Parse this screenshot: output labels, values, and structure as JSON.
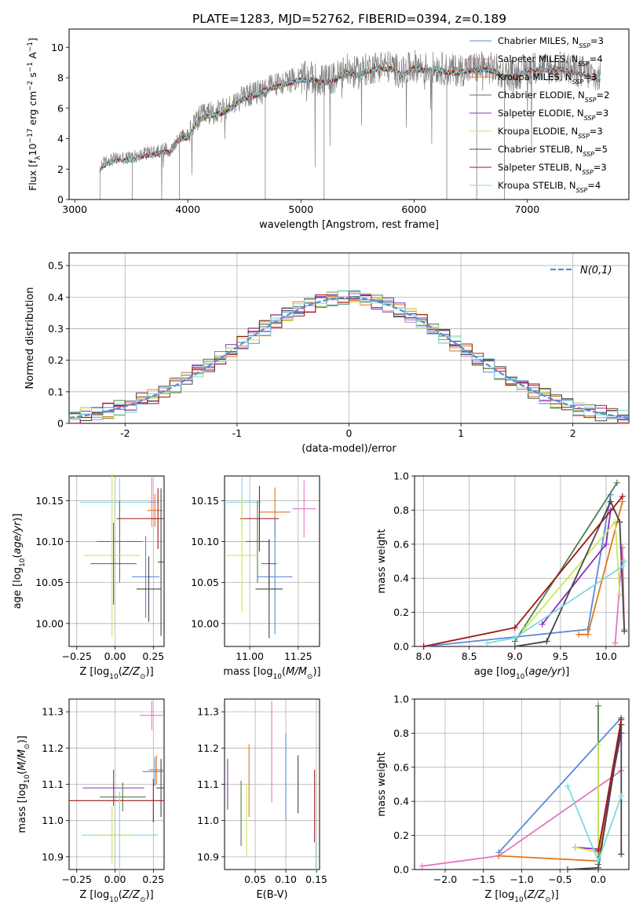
{
  "figure_title": "PLATE=1283, MJD=52762, FIBERID=0394, z=0.189",
  "colors": {
    "chabrier_miles": "#5a8bd8",
    "salpeter_miles": "#e377c2",
    "kroupa_miles": "#e0781e",
    "chabrier_elodie": "#4f7f4f",
    "salpeter_elodie": "#8a2fb8",
    "kroupa_elodie": "#c9e85a",
    "chabrier_stelib": "#454545",
    "salpeter_stelib": "#a11515",
    "kroupa_stelib": "#7fd9e0",
    "data": "#808080",
    "gaussian": "#5b8bd6",
    "grid": "#b0b0b0"
  },
  "chart_data": [
    {
      "type": "line",
      "id": "spectrum",
      "xlabel": "wavelength [Angstrom, rest frame]",
      "ylabel": "Flux [f$_\\lambda$10$^{-17}$ erg cm$^{-2}$ s$^{-1}$ A$^{-1}$]",
      "xlim": [
        2950,
        7900
      ],
      "ylim": [
        0,
        11.2
      ],
      "xticks": [
        3000,
        4000,
        5000,
        6000,
        7000
      ],
      "yticks": [
        0,
        2,
        4,
        6,
        8,
        10
      ],
      "grid": false,
      "legend_position": "top-right",
      "legend": [
        {
          "label": "Chabrier MILES, N_SSP=3",
          "color_key": "chabrier_miles"
        },
        {
          "label": "Salpeter MILES, N_SSP=4",
          "color_key": "salpeter_miles"
        },
        {
          "label": "Kroupa MILES, N_SSP=3",
          "color_key": "kroupa_miles"
        },
        {
          "label": "Chabrier ELODIE, N_SSP=2",
          "color_key": "chabrier_elodie"
        },
        {
          "label": "Salpeter ELODIE, N_SSP=3",
          "color_key": "salpeter_elodie"
        },
        {
          "label": "Kroupa ELODIE, N_SSP=3",
          "color_key": "kroupa_elodie"
        },
        {
          "label": "Chabrier STELIB, N_SSP=5",
          "color_key": "chabrier_stelib"
        },
        {
          "label": "Salpeter STELIB, N_SSP=3",
          "color_key": "salpeter_stelib"
        },
        {
          "label": "Kroupa STELIB, N_SSP=4",
          "color_key": "kroupa_stelib"
        }
      ],
      "data_x_range": [
        3220,
        7650
      ],
      "continuum": {
        "x": [
          3220,
          3240,
          3300,
          3400,
          3500,
          3600,
          3700,
          3800,
          3850,
          3900,
          3950,
          4000,
          4100,
          4200,
          4300,
          4400,
          4500,
          4600,
          4700,
          4800,
          4900,
          5000,
          5100,
          5200,
          5300,
          5400,
          5500,
          5600,
          5700,
          5800,
          5900,
          6000,
          6100,
          6200,
          6300,
          6400,
          6500,
          6600,
          6700,
          6800,
          6900,
          7000,
          7100,
          7200,
          7300,
          7400,
          7500,
          7650
        ],
        "y": [
          2.0,
          2.3,
          2.6,
          2.7,
          2.75,
          3.0,
          3.1,
          3.3,
          3.2,
          3.9,
          4.2,
          4.2,
          5.4,
          5.7,
          5.8,
          6.3,
          6.8,
          7.0,
          7.4,
          7.6,
          7.8,
          8.0,
          8.0,
          7.8,
          8.0,
          8.5,
          8.3,
          8.6,
          8.8,
          8.7,
          8.3,
          8.8,
          8.6,
          8.7,
          8.5,
          8.5,
          8.6,
          8.7,
          8.6,
          8.2,
          8.2,
          8.6,
          8.7,
          8.6,
          8.7,
          8.5,
          8.4,
          7.9
        ]
      }
    },
    {
      "type": "histogram",
      "id": "residuals",
      "xlabel": "(data-model)/error",
      "ylabel": "Normed distribution",
      "xlim": [
        -2.5,
        2.5
      ],
      "ylim": [
        0,
        0.54
      ],
      "xticks": [
        -2,
        -1,
        0,
        1,
        2
      ],
      "yticks": [
        0.0,
        0.1,
        0.2,
        0.3,
        0.4,
        0.5
      ],
      "grid": true,
      "legend_position": "top-right",
      "legend": [
        {
          "label": "N(0,1)",
          "color_key": "gaussian"
        }
      ],
      "bin_width": 0.1
    },
    {
      "type": "scatter",
      "id": "age_vs_Z",
      "xlabel": "Z [log10(Z/Z⊙)]",
      "ylabel": "age [log10(age/yr)]",
      "xlim": [
        -0.3,
        0.32
      ],
      "ylim": [
        9.972,
        10.18
      ],
      "xticks": [
        -0.25,
        0.0,
        0.25
      ],
      "xtick_labels": [
        "−0.25",
        "0.00",
        "0.25"
      ],
      "yticks": [
        10.0,
        10.05,
        10.1,
        10.15
      ],
      "ytick_labels": [
        "10.00",
        "10.05",
        "10.10",
        "10.15"
      ],
      "grid": true,
      "points": [
        {
          "color_key": "kroupa_stelib",
          "x": 0.03,
          "y": 10.148,
          "xerr": 0.26,
          "yerr": 0.03
        },
        {
          "color_key": "salpeter_miles",
          "x": 0.24,
          "y": 10.148,
          "xerr": 0.02,
          "yerr": 0.03
        },
        {
          "color_key": "kroupa_miles",
          "x": 0.26,
          "y": 10.138,
          "xerr": 0.05,
          "yerr": 0.02
        },
        {
          "color_key": "salpeter_stelib",
          "x": 0.28,
          "y": 10.128,
          "xerr": 0.27,
          "yerr": 0.037
        },
        {
          "color_key": "chabrier_stelib",
          "x": 0.3,
          "y": 10.075,
          "xerr": 0.02,
          "yerr": 0.09
        },
        {
          "color_key": "chabrier_elodie",
          "x": 0.03,
          "y": 10.1,
          "xerr": 0.15,
          "yerr": 0.05
        },
        {
          "color_key": "kroupa_elodie",
          "x": -0.02,
          "y": 10.083,
          "xerr": 0.18,
          "yerr": 0.1
        },
        {
          "color_key": "salpeter_elodie",
          "x": -0.01,
          "y": 10.073,
          "xerr": 0.15,
          "yerr": 0.05
        },
        {
          "color_key": "chabrier_miles",
          "x": 0.2,
          "y": 10.057,
          "xerr": 0.09,
          "yerr": 0.05
        },
        {
          "color_key": "chabrier_stelib",
          "x": 0.22,
          "y": 10.042,
          "xerr": 0.08,
          "yerr": 0.04
        }
      ]
    },
    {
      "type": "scatter",
      "id": "age_vs_mass",
      "xlabel": "mass [log10(M/M⊙)]",
      "ylabel": "",
      "xlim": [
        10.87,
        11.36
      ],
      "ylim": [
        9.972,
        10.18
      ],
      "xticks": [
        11.0,
        11.25
      ],
      "xtick_labels": [
        "11.00",
        "11.25"
      ],
      "yticks": [
        10.0,
        10.05,
        10.1,
        10.15
      ],
      "ytick_labels": [
        "10.00",
        "10.05",
        "10.10",
        "10.15"
      ],
      "grid": true,
      "points": [
        {
          "color_key": "kroupa_stelib",
          "x": 10.96,
          "y": 10.148,
          "xerr": 0.1,
          "yerr": 0.03
        },
        {
          "color_key": "salpeter_miles",
          "x": 11.28,
          "y": 10.14,
          "xerr": 0.06,
          "yerr": 0.035
        },
        {
          "color_key": "kroupa_miles",
          "x": 11.13,
          "y": 10.136,
          "xerr": 0.08,
          "yerr": 0.03
        },
        {
          "color_key": "salpeter_stelib",
          "x": 11.05,
          "y": 10.128,
          "xerr": 0.1,
          "yerr": 0.04
        },
        {
          "color_key": "chabrier_elodie",
          "x": 11.04,
          "y": 10.1,
          "xerr": 0.06,
          "yerr": 0.05
        },
        {
          "color_key": "kroupa_elodie",
          "x": 10.96,
          "y": 10.083,
          "xerr": 0.08,
          "yerr": 0.07
        },
        {
          "color_key": "salpeter_elodie",
          "x": 11.1,
          "y": 10.073,
          "xerr": 0.04,
          "yerr": 0.03
        },
        {
          "color_key": "chabrier_miles",
          "x": 11.13,
          "y": 10.057,
          "xerr": 0.09,
          "yerr": 0.07
        },
        {
          "color_key": "chabrier_stelib",
          "x": 11.1,
          "y": 10.042,
          "xerr": 0.07,
          "yerr": 0.06
        }
      ]
    },
    {
      "type": "line",
      "id": "weight_vs_age",
      "xlabel": "age [log10(age/yr)]",
      "ylabel": "mass weight",
      "xlim": [
        7.9,
        10.25
      ],
      "ylim": [
        0,
        1.0
      ],
      "xticks": [
        8.0,
        8.5,
        9.0,
        9.5,
        10.0
      ],
      "xtick_labels": [
        "8.0",
        "8.5",
        "9.0",
        "9.5",
        "10.0"
      ],
      "yticks": [
        0.0,
        0.2,
        0.4,
        0.6,
        0.8,
        1.0
      ],
      "ytick_labels": [
        "0.0",
        "0.2",
        "0.4",
        "0.6",
        "0.8",
        "1.0"
      ],
      "grid": true,
      "series": [
        {
          "color_key": "chabrier_miles",
          "x": [
            8.0,
            9.8,
            10.05
          ],
          "y": [
            0.0,
            0.1,
            0.89
          ]
        },
        {
          "color_key": "salpeter_miles",
          "x": [
            10.1,
            10.18,
            10.2
          ],
          "y": [
            0.02,
            0.58,
            0.1
          ]
        },
        {
          "color_key": "kroupa_miles",
          "x": [
            9.7,
            9.8,
            10.18
          ],
          "y": [
            0.07,
            0.07,
            0.85
          ]
        },
        {
          "color_key": "chabrier_elodie",
          "x": [
            9.0,
            10.12
          ],
          "y": [
            0.03,
            0.96
          ]
        },
        {
          "color_key": "salpeter_elodie",
          "x": [
            9.3,
            10.0,
            10.05
          ],
          "y": [
            0.13,
            0.6,
            0.8
          ]
        },
        {
          "color_key": "kroupa_elodie",
          "x": [
            9.1,
            10.1,
            10.15
          ],
          "y": [
            0.1,
            0.73,
            0.3
          ]
        },
        {
          "color_key": "chabrier_stelib",
          "x": [
            9.0,
            9.35,
            10.05,
            10.15,
            10.2
          ],
          "y": [
            0.0,
            0.03,
            0.85,
            0.73,
            0.09
          ]
        },
        {
          "color_key": "salpeter_stelib",
          "x": [
            8.0,
            9.0,
            10.18
          ],
          "y": [
            0.0,
            0.11,
            0.88
          ]
        },
        {
          "color_key": "kroupa_stelib",
          "x": [
            8.7,
            9.0,
            10.18,
            10.2
          ],
          "y": [
            0.02,
            0.05,
            0.47,
            0.5
          ]
        }
      ]
    },
    {
      "type": "scatter",
      "id": "mass_vs_Z",
      "xlabel": "Z [log10(Z/Z⊙)]",
      "ylabel": "mass [log10(M/M⊙)]",
      "xlim": [
        -0.3,
        0.32
      ],
      "ylim": [
        10.865,
        11.335
      ],
      "xticks": [
        -0.25,
        0.0,
        0.25
      ],
      "xtick_labels": [
        "−0.25",
        "0.00",
        "0.25"
      ],
      "yticks": [
        10.9,
        11.0,
        11.1,
        11.2,
        11.3
      ],
      "ytick_labels": [
        "10.9",
        "11.0",
        "11.1",
        "11.2",
        "11.3"
      ],
      "grid": true,
      "points": [
        {
          "color_key": "salpeter_miles",
          "x": 0.24,
          "y": 11.29,
          "xerr": 0.08,
          "yerr": 0.04
        },
        {
          "color_key": "kroupa_miles",
          "x": 0.27,
          "y": 11.14,
          "xerr": 0.05,
          "yerr": 0.04
        },
        {
          "color_key": "chabrier_miles",
          "x": 0.26,
          "y": 11.135,
          "xerr": 0.08,
          "yerr": 0.04
        },
        {
          "color_key": "chabrier_stelib",
          "x": 0.3,
          "y": 11.09,
          "xerr": 0.03,
          "yerr": 0.08
        },
        {
          "color_key": "salpeter_elodie",
          "x": -0.01,
          "y": 11.09,
          "xerr": 0.2,
          "yerr": 0.05
        },
        {
          "color_key": "chabrier_elodie",
          "x": 0.05,
          "y": 11.065,
          "xerr": 0.15,
          "yerr": 0.04
        },
        {
          "color_key": "salpeter_stelib",
          "x": 0.25,
          "y": 11.055,
          "xerr": 0.55,
          "yerr": 0.06
        },
        {
          "color_key": "kroupa_stelib",
          "x": 0.03,
          "y": 10.96,
          "xerr": 0.25,
          "yerr": 0.12
        },
        {
          "color_key": "kroupa_elodie",
          "x": -0.02,
          "y": 10.96,
          "xerr": 0.13,
          "yerr": 0.08
        }
      ]
    },
    {
      "type": "scatter",
      "id": "mass_vs_ebv",
      "xlabel": "E(B-V)",
      "ylabel": "",
      "xlim": [
        0.0,
        0.155
      ],
      "ylim": [
        10.865,
        11.335
      ],
      "xticks": [
        0.05,
        0.1,
        0.15
      ],
      "xtick_labels": [
        "0.05",
        "0.10",
        "0.15"
      ],
      "yticks": [
        10.9,
        11.0,
        11.1,
        11.2,
        11.3
      ],
      "ytick_labels": [
        "10.9",
        "11.0",
        "11.1",
        "11.2",
        "11.3"
      ],
      "grid": true,
      "points": [
        {
          "color_key": "salpeter_elodie",
          "x": 0.005,
          "y": 11.1,
          "xerr": 0.0,
          "yerr": 0.07
        },
        {
          "color_key": "chabrier_elodie",
          "x": 0.027,
          "y": 11.02,
          "xerr": 0.0,
          "yerr": 0.09
        },
        {
          "color_key": "kroupa_elodie",
          "x": 0.036,
          "y": 11.0,
          "xerr": 0.0,
          "yerr": 0.1
        },
        {
          "color_key": "kroupa_miles",
          "x": 0.04,
          "y": 11.11,
          "xerr": 0.0,
          "yerr": 0.1
        },
        {
          "color_key": "salpeter_miles",
          "x": 0.077,
          "y": 11.19,
          "xerr": 0.0,
          "yerr": 0.14
        },
        {
          "color_key": "chabrier_miles",
          "x": 0.1,
          "y": 11.12,
          "xerr": 0.0,
          "yerr": 0.12
        },
        {
          "color_key": "chabrier_stelib",
          "x": 0.12,
          "y": 11.1,
          "xerr": 0.0,
          "yerr": 0.08
        },
        {
          "color_key": "salpeter_stelib",
          "x": 0.147,
          "y": 11.04,
          "xerr": 0.0,
          "yerr": 0.1
        },
        {
          "color_key": "kroupa_stelib",
          "x": 0.149,
          "y": 10.9,
          "xerr": 0.0,
          "yerr": 0.04
        }
      ]
    },
    {
      "type": "line",
      "id": "weight_vs_Z",
      "xlabel": "Z [log10(Z/Z⊙)]",
      "ylabel": "mass weight",
      "xlim": [
        -2.4,
        0.4
      ],
      "ylim": [
        0,
        1.0
      ],
      "xticks": [
        -2.0,
        -1.5,
        -1.0,
        -0.5,
        0.0
      ],
      "xtick_labels": [
        "−2.0",
        "−1.5",
        "−1.0",
        "−0.5",
        "0.0"
      ],
      "yticks": [
        0.0,
        0.2,
        0.4,
        0.6,
        0.8,
        1.0
      ],
      "ytick_labels": [
        "0.0",
        "0.2",
        "0.4",
        "0.6",
        "0.8",
        "1.0"
      ],
      "grid": true,
      "series": [
        {
          "color_key": "chabrier_miles",
          "x": [
            -1.3,
            0.3
          ],
          "y": [
            0.1,
            0.89
          ]
        },
        {
          "color_key": "salpeter_miles",
          "x": [
            -2.3,
            -1.3,
            0.3
          ],
          "y": [
            0.02,
            0.08,
            0.58
          ]
        },
        {
          "color_key": "kroupa_miles",
          "x": [
            -1.3,
            0.0,
            0.3
          ],
          "y": [
            0.08,
            0.05,
            0.85
          ]
        },
        {
          "color_key": "chabrier_elodie",
          "x": [
            0.0,
            0.0
          ],
          "y": [
            0.96,
            0.03
          ]
        },
        {
          "color_key": "salpeter_elodie",
          "x": [
            -0.3,
            0.0,
            0.3
          ],
          "y": [
            0.13,
            0.12,
            0.8
          ]
        },
        {
          "color_key": "kroupa_elodie",
          "x": [
            0.0,
            0.0,
            -0.3
          ],
          "y": [
            0.73,
            0.1,
            0.13
          ]
        },
        {
          "color_key": "chabrier_stelib",
          "x": [
            -0.4,
            0.0,
            0.3,
            0.3
          ],
          "y": [
            0.0,
            0.01,
            0.85,
            0.09
          ]
        },
        {
          "color_key": "salpeter_stelib",
          "x": [
            0.0,
            0.3
          ],
          "y": [
            0.11,
            0.88
          ]
        },
        {
          "color_key": "kroupa_stelib",
          "x": [
            -0.4,
            0.0,
            0.3
          ],
          "y": [
            0.49,
            0.05,
            0.43
          ]
        }
      ]
    }
  ]
}
